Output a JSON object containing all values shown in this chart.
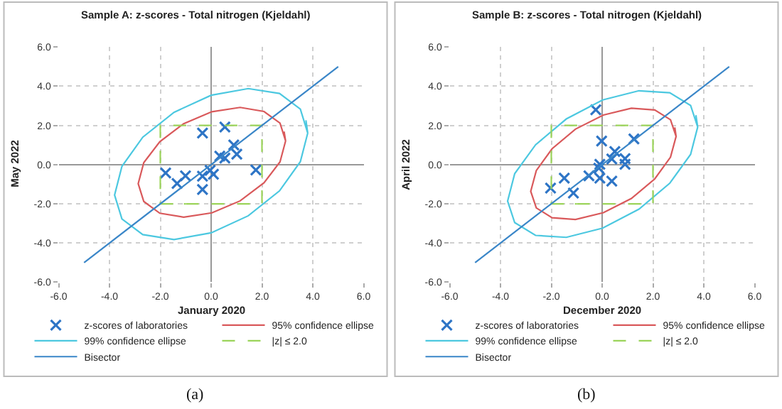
{
  "chart_data": [
    {
      "type": "scatter",
      "title": "Sample A: z-scores - Total nitrogen (Kjeldahl)",
      "xlabel": "January 2020",
      "ylabel": "May 2022",
      "xlim": [
        -6,
        6
      ],
      "ylim": [
        -6,
        6
      ],
      "xticks": [
        {
          "value": -6,
          "label": "-6.0"
        },
        {
          "value": -4,
          "label": "-4.0"
        },
        {
          "value": -2,
          "label": "-2.0"
        },
        {
          "value": 0,
          "label": "0.0"
        },
        {
          "value": 2,
          "label": "2.0"
        },
        {
          "value": 4,
          "label": "4.0"
        },
        {
          "value": 6,
          "label": "6.0"
        }
      ],
      "yticks": [
        {
          "value": -6,
          "label": "-6.0"
        },
        {
          "value": -4,
          "label": "-4.0"
        },
        {
          "value": -2,
          "label": "-2.0"
        },
        {
          "value": 0,
          "label": "0.0"
        },
        {
          "value": 2,
          "label": "2.0"
        },
        {
          "value": 4,
          "label": "4.0"
        },
        {
          "value": 6,
          "label": "6.0"
        }
      ],
      "grid": true,
      "legend": "bottom",
      "annotations": [
        "(a)"
      ],
      "series": [
        {
          "name": "z-scores of laboratories",
          "type": "scatter",
          "marker": "cross",
          "color": "#2e75c6",
          "x": [
            0.54,
            -0.34,
            0.89,
            1.01,
            0.34,
            0.54,
            -1.79,
            -1.01,
            -1.34,
            -0.34,
            -0.04,
            0.09,
            -0.34,
            1.76
          ],
          "values": [
            1.92,
            1.61,
            1.0,
            0.53,
            0.43,
            0.33,
            -0.43,
            -0.57,
            -0.96,
            -0.59,
            -0.29,
            -0.49,
            -1.27,
            -0.27
          ]
        },
        {
          "name": "95% confidence ellipse",
          "type": "line",
          "marker": "none",
          "color": "#d9595b",
          "x": [
            2.93,
            2.71,
            2.08,
            1.14,
            0.03,
            -1.08,
            -2.02,
            -2.65,
            -2.87,
            -2.65,
            -2.02,
            -1.08,
            0.03,
            1.14,
            2.08,
            2.71,
            2.93,
            2.87
          ],
          "values": [
            1.21,
            2.12,
            2.71,
            2.92,
            2.7,
            2.09,
            1.17,
            0.1,
            -0.97,
            -1.88,
            -2.48,
            -2.68,
            -2.46,
            -1.85,
            -0.93,
            0.14,
            1.21,
            1.69
          ]
        },
        {
          "name": "99% confidence ellipse",
          "type": "line",
          "marker": "none",
          "color": "#4cc8e0",
          "x": [
            3.8,
            3.51,
            2.69,
            1.46,
            0,
            -1.46,
            -2.69,
            -3.51,
            -3.8,
            -3.51,
            -2.69,
            -1.46,
            0,
            1.46,
            2.69,
            3.51,
            3.8,
            3.73
          ],
          "values": [
            1.61,
            2.83,
            3.63,
            3.88,
            3.54,
            2.67,
            1.4,
            -0.09,
            -1.55,
            -2.77,
            -3.57,
            -3.82,
            -3.48,
            -2.61,
            -1.34,
            0.15,
            1.61,
            2.26
          ]
        },
        {
          "name": "|z| ≤ 2.0",
          "type": "line",
          "marker": "none",
          "line_style": "dashed",
          "color": "#9bd45a",
          "x": [
            -2,
            2,
            2,
            -2,
            -2,
            -1
          ],
          "values": [
            -2,
            -2,
            2,
            2,
            -2,
            -2
          ]
        },
        {
          "name": "Bisector",
          "type": "line",
          "marker": "none",
          "color": "#3a86c8",
          "x": [
            -5,
            5
          ],
          "values": [
            -5,
            5
          ]
        }
      ]
    },
    {
      "type": "scatter",
      "title": "Sample B: z-scores - Total nitrogen (Kjeldahl)",
      "xlabel": "December 2020",
      "ylabel": "April 2022",
      "xlim": [
        -6,
        6
      ],
      "ylim": [
        -6,
        6
      ],
      "xticks": [
        {
          "value": -6,
          "label": "-6.0"
        },
        {
          "value": -4,
          "label": "-4.0"
        },
        {
          "value": -2,
          "label": "-2.0"
        },
        {
          "value": 0,
          "label": "0.0"
        },
        {
          "value": 2,
          "label": "2.0"
        },
        {
          "value": 4,
          "label": "4.0"
        },
        {
          "value": 6,
          "label": "6.0"
        }
      ],
      "yticks": [
        {
          "value": -6,
          "label": "-6.0"
        },
        {
          "value": -4,
          "label": "-4.0"
        },
        {
          "value": -2,
          "label": "-2.0"
        },
        {
          "value": 0,
          "label": "0.0"
        },
        {
          "value": 2,
          "label": "2.0"
        },
        {
          "value": 4,
          "label": "4.0"
        },
        {
          "value": 6,
          "label": "6.0"
        }
      ],
      "grid": true,
      "legend": "bottom",
      "annotations": [
        "(b)"
      ],
      "series": [
        {
          "name": "z-scores of laboratories",
          "type": "scatter",
          "marker": "cross",
          "color": "#2e75c6",
          "x": [
            -0.25,
            -0.02,
            1.25,
            0.5,
            0.38,
            0.9,
            0.9,
            -0.09,
            -0.13,
            -0.52,
            -0.09,
            0.38,
            -1.49,
            -2.03,
            -1.13
          ],
          "values": [
            2.8,
            1.2,
            1.31,
            0.67,
            0.29,
            0.31,
            0.02,
            0.02,
            -0.18,
            -0.57,
            -0.69,
            -0.84,
            -0.69,
            -1.2,
            -1.45
          ]
        },
        {
          "name": "95% confidence ellipse",
          "type": "line",
          "marker": "none",
          "color": "#d9595b",
          "x": [
            2.91,
            2.69,
            2.07,
            1.15,
            0.05,
            -1.05,
            -1.97,
            -2.59,
            -2.81,
            -2.59,
            -1.97,
            -1.05,
            0.05,
            1.15,
            2.07,
            2.69,
            2.91,
            2.86
          ],
          "values": [
            1.44,
            2.29,
            2.79,
            2.88,
            2.53,
            1.81,
            0.81,
            -0.3,
            -1.36,
            -2.21,
            -2.71,
            -2.8,
            -2.45,
            -1.73,
            -0.73,
            0.38,
            1.44,
            1.9
          ]
        },
        {
          "name": "99% confidence ellipse",
          "type": "line",
          "marker": "none",
          "color": "#4cc8e0",
          "x": [
            3.76,
            3.48,
            2.66,
            1.45,
            0.02,
            -1.41,
            -2.62,
            -3.44,
            -3.72,
            -3.44,
            -2.62,
            -1.41,
            0.02,
            1.45,
            2.66,
            3.48,
            3.76,
            3.69
          ],
          "values": [
            1.92,
            3.02,
            3.67,
            3.77,
            3.3,
            2.33,
            1.01,
            -0.46,
            -1.86,
            -2.96,
            -3.61,
            -3.71,
            -3.24,
            -2.27,
            -0.95,
            0.52,
            1.92,
            2.52
          ]
        },
        {
          "name": "|z| ≤ 2.0",
          "type": "line",
          "marker": "none",
          "line_style": "dashed",
          "color": "#9bd45a",
          "x": [
            -2,
            2,
            2,
            -2,
            -2,
            -1
          ],
          "values": [
            -2,
            -2,
            2,
            2,
            -2,
            -2
          ]
        },
        {
          "name": "Bisector",
          "type": "line",
          "marker": "none",
          "color": "#3a86c8",
          "x": [
            -5,
            5
          ],
          "values": [
            -5,
            5
          ]
        }
      ]
    }
  ]
}
